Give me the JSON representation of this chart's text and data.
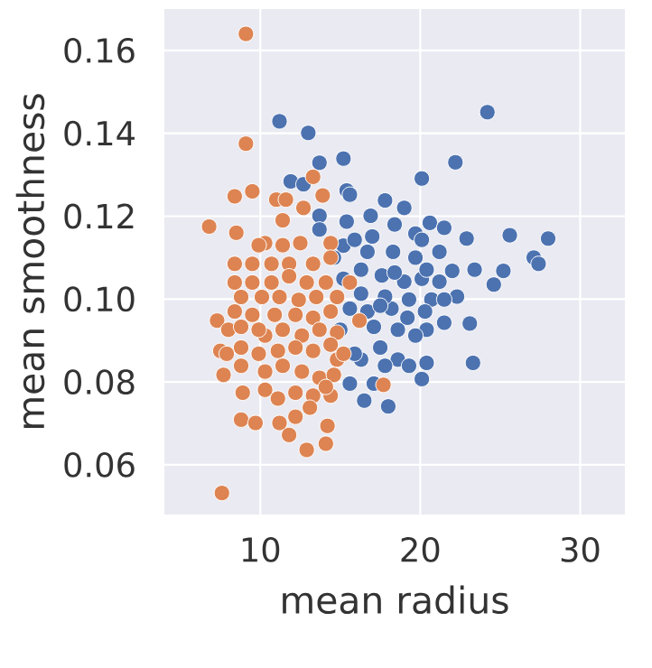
{
  "chart_data": {
    "type": "scatter",
    "xlabel": "mean radius",
    "ylabel": "mean smoothness",
    "xlim": [
      4,
      32.8
    ],
    "ylim": [
      0.048,
      0.17
    ],
    "xticks": [
      10,
      20,
      30
    ],
    "yticks": [
      0.06,
      0.08,
      {
        "value": 0.1,
        "label": "0.10"
      },
      0.12,
      0.14,
      0.16
    ],
    "grid": true,
    "marker": "circle",
    "series": [
      {
        "color": "#4c72b0",
        "x": [
          11.2,
          13.0,
          13.7,
          15.2,
          24.2,
          22.2,
          20.1,
          15.4,
          15.6,
          11.9,
          12.7,
          17.8,
          19.0,
          13.7,
          13.7,
          15.4,
          16.9,
          18.4,
          19.7,
          20.6,
          21.5,
          22.9,
          25.6,
          28.0,
          27.1,
          27.4,
          24.6,
          25.2,
          23.4,
          22.0,
          23.1,
          23.3,
          21.5,
          20.4,
          20.4,
          20.1,
          18.0,
          16.5,
          15.6,
          15.0,
          16.3,
          17.1,
          18.2,
          19.3,
          20.7,
          22.3,
          20.1,
          19.0,
          17.6,
          16.3,
          15.2,
          16.7,
          18.3,
          19.7,
          21.2,
          16.3,
          17.8,
          15.6,
          16.7,
          18.6,
          19.7,
          17.5,
          18.6,
          19.3,
          17.8,
          17.1,
          15.9,
          15.2,
          14.6,
          15.9,
          17.0,
          20.1,
          20.4,
          21.2,
          21.5,
          20.3,
          19.2,
          17.5,
          18.4
        ],
        "values": [
          0.1429,
          0.1401,
          0.1329,
          0.1339,
          0.1451,
          0.133,
          0.1291,
          0.1262,
          0.1252,
          0.1284,
          0.1277,
          0.1238,
          0.122,
          0.1201,
          0.1168,
          0.1187,
          0.1201,
          0.118,
          0.1158,
          0.1184,
          0.1172,
          0.1146,
          0.1154,
          0.1146,
          0.11,
          0.1085,
          0.1035,
          0.1068,
          0.1071,
          0.1068,
          0.0941,
          0.0846,
          0.0943,
          0.0926,
          0.0846,
          0.0807,
          0.0741,
          0.0755,
          0.0796,
          0.0926,
          0.0854,
          0.0933,
          0.0977,
          0.0999,
          0.0999,
          0.1006,
          0.1049,
          0.1042,
          0.1057,
          0.1071,
          0.1129,
          0.1114,
          0.1114,
          0.11,
          0.1114,
          0.1013,
          0.1006,
          0.0977,
          0.097,
          0.0926,
          0.0912,
          0.0883,
          0.0854,
          0.0839,
          0.0839,
          0.0796,
          0.0868,
          0.1049,
          0.11,
          0.1143,
          0.1151,
          0.1143,
          0.1071,
          0.1042,
          0.0999,
          0.097,
          0.0955,
          0.0984,
          0.1064
        ]
      },
      {
        "color": "#dd8452",
        "x": [
          9.1,
          9.1,
          6.8,
          8.4,
          9.5,
          8.5,
          11.0,
          11.6,
          13.3,
          13.9,
          12.7,
          11.4,
          10.3,
          9.9,
          11.4,
          12.5,
          14.4,
          13.3,
          14.4,
          8.4,
          9.5,
          10.7,
          11.8,
          8.4,
          9.5,
          10.7,
          11.8,
          12.9,
          14.1,
          8.8,
          10.1,
          11.2,
          12.4,
          13.5,
          14.8,
          15.6,
          16.2,
          7.3,
          8.4,
          9.5,
          10.9,
          12.2,
          13.3,
          14.4,
          8.0,
          8.8,
          10.3,
          11.4,
          12.6,
          13.7,
          14.8,
          7.5,
          7.9,
          8.8,
          9.9,
          11.1,
          12.2,
          13.3,
          14.4,
          7.7,
          8.8,
          10.3,
          11.4,
          12.6,
          13.7,
          14.6,
          8.9,
          10.3,
          11.1,
          12.2,
          13.3,
          14.4,
          17.7,
          8.8,
          9.7,
          11.2,
          12.2,
          13.1,
          14.2,
          11.8,
          12.9,
          14.1,
          7.6,
          14.8,
          15.2,
          14.1,
          9.9
        ],
        "values": [
          0.164,
          0.1375,
          0.1175,
          0.1248,
          0.126,
          0.116,
          0.124,
          0.124,
          0.1295,
          0.125,
          0.122,
          0.119,
          0.1135,
          0.113,
          0.113,
          0.1135,
          0.1135,
          0.1085,
          0.11,
          0.1085,
          0.1085,
          0.1085,
          0.1085,
          0.104,
          0.104,
          0.104,
          0.1055,
          0.104,
          0.104,
          0.1005,
          0.1005,
          0.1005,
          0.0998,
          0.1005,
          0.1005,
          0.104,
          0.0948,
          0.0948,
          0.097,
          0.0962,
          0.0962,
          0.0962,
          0.0955,
          0.097,
          0.0926,
          0.0933,
          0.0912,
          0.0926,
          0.0912,
          0.0926,
          0.0919,
          0.0875,
          0.0868,
          0.0883,
          0.0868,
          0.0875,
          0.0883,
          0.0875,
          0.089,
          0.0817,
          0.0839,
          0.0825,
          0.0839,
          0.0825,
          0.081,
          0.0817,
          0.0774,
          0.0781,
          0.076,
          0.0774,
          0.0767,
          0.0767,
          0.0793,
          0.0709,
          0.0701,
          0.0701,
          0.0716,
          0.0738,
          0.0694,
          0.0672,
          0.0636,
          0.0651,
          0.0532,
          0.0854,
          0.0868,
          0.0788,
          0.0926
        ]
      }
    ]
  }
}
